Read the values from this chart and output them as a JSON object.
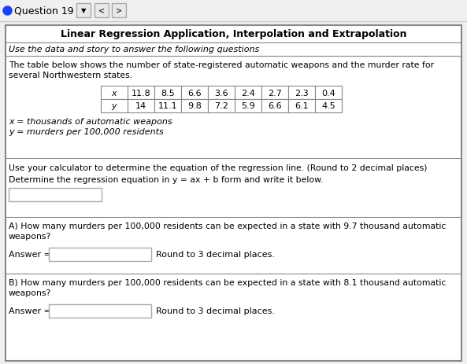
{
  "title": "Linear Regression Application, Interpolation and Extrapolation",
  "subtitle": "Use the data and story to answer the following questions",
  "table_intro_1": "The table below shows the number of state-registered automatic weapons and the murder rate for",
  "table_intro_2": "several Northwestern states.",
  "x_values": [
    "11.8",
    "8.5",
    "6.6",
    "3.6",
    "2.4",
    "2.7",
    "2.3",
    "0.4"
  ],
  "y_values": [
    "14",
    "11.1",
    "9.8",
    "7.2",
    "5.9",
    "6.6",
    "6.1",
    "4.5"
  ],
  "x_label": "x = thousands of automatic weapons",
  "y_label": "y = murders per 100,000 residents",
  "s2_line1": "Use your calculator to determine the equation of the regression line. (Round to 2 decimal places)",
  "s2_line2": "Determine the regression equation in y = ax + b form and write it below.",
  "sA_line1": "A) How many murders per 100,000 residents can be expected in a state with 9.7 thousand automatic",
  "sA_line2": "weapons?",
  "sB_line1": "B) How many murders per 100,000 residents can be expected in a state with 8.1 thousand automatic",
  "sB_line2": "weapons?",
  "answer_label": "Answer =",
  "round_label": "Round to 3 decimal places.",
  "nav_bullet_color": "#1a3fff",
  "nav_text": "Question 19",
  "border_color": "#888888",
  "section_div_color": "#888888",
  "bg_white": "#ffffff",
  "bg_nav": "#f0f0f0",
  "text_black": "#000000",
  "btn_bg": "#e8e8e8",
  "btn_border": "#aaaaaa",
  "input_border": "#aaaaaa"
}
